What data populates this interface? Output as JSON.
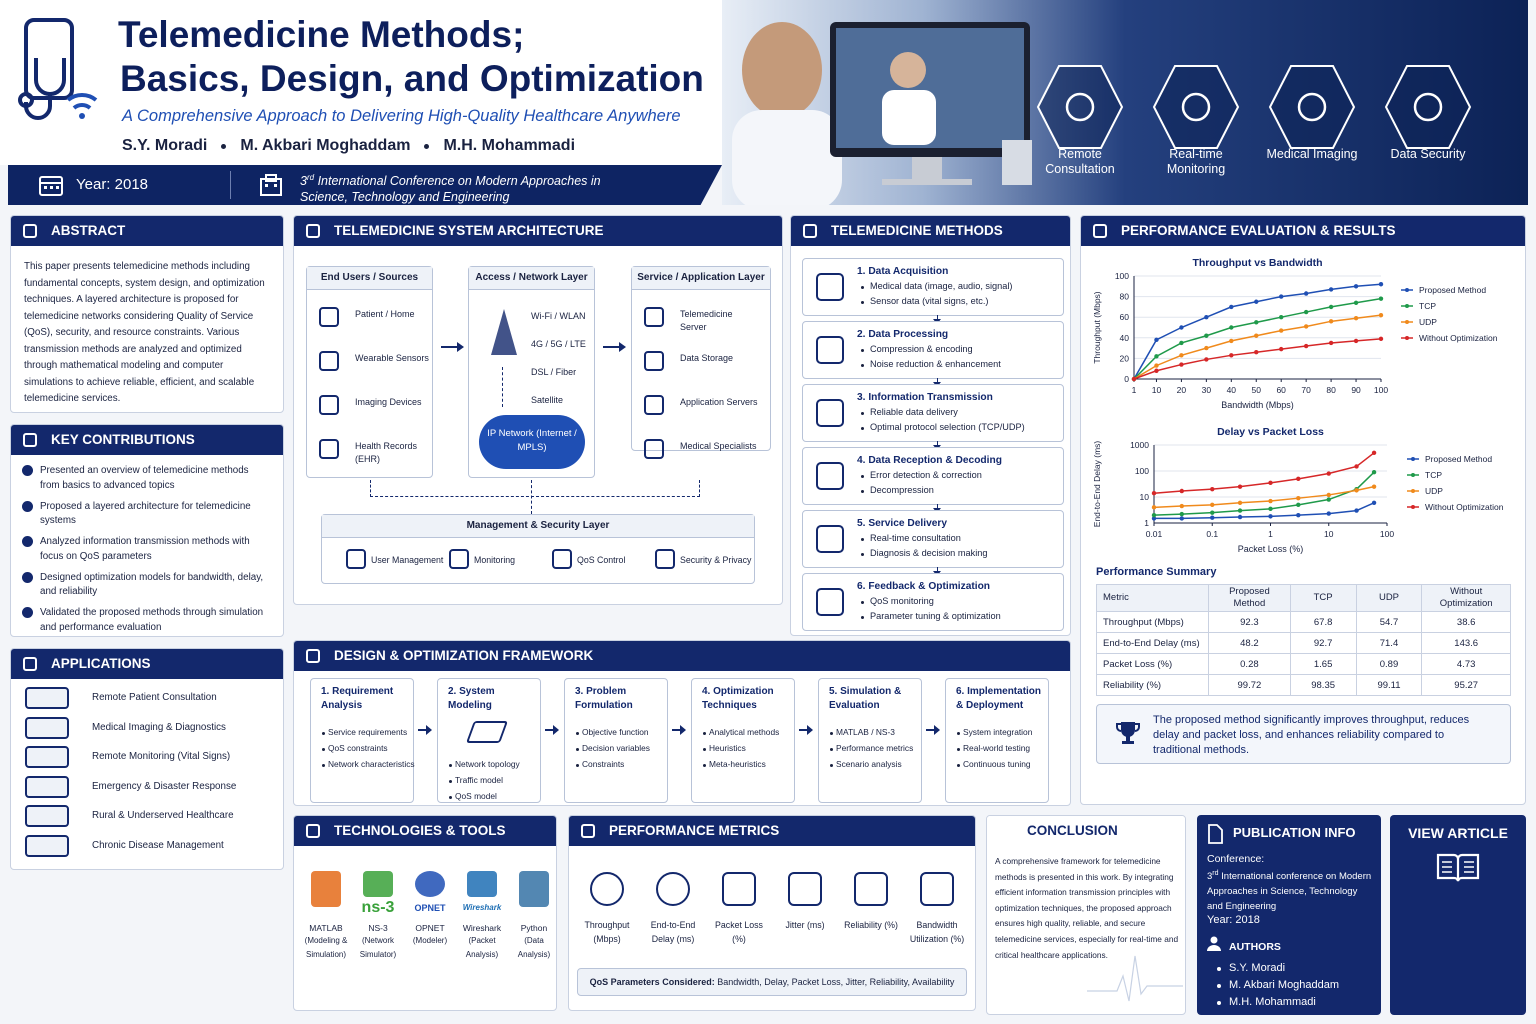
{
  "header": {
    "title_line1": "Telemedicine Methods;",
    "title_line2": "Basics, Design, and Optimization",
    "subtitle": "A Comprehensive Approach to Delivering High-Quality Healthcare Anywhere",
    "authors": [
      "S.Y. Moradi",
      "M. Akbari Moghaddam",
      "M.H. Mohammadi"
    ],
    "year": "Year: 2018",
    "conference_ordinal": "3",
    "conference_sup": "rd",
    "conference_line1": "International Conference on Modern Approaches in",
    "conference_line2": "Science, Technology and Engineering",
    "features": [
      "Remote Consultation",
      "Real-time Monitoring",
      "Medical Imaging",
      "Data Security"
    ]
  },
  "abstract": {
    "title": "ABSTRACT",
    "text": "This paper presents telemedicine methods including fundamental concepts, system design, and optimization techniques. A layered architecture is proposed for telemedicine networks considering Quality of Service (QoS), security, and resource constraints. Various transmission methods are analyzed and optimized through mathematical modeling and computer simulations to achieve reliable, efficient, and scalable telemedicine services."
  },
  "key_contributions": {
    "title": "KEY CONTRIBUTIONS",
    "items": [
      "Presented an overview of telemedicine methods from basics to advanced topics",
      "Proposed a layered architecture for telemedicine systems",
      "Analyzed information transmission methods with focus on QoS parameters",
      "Designed optimization models for bandwidth, delay, and reliability",
      "Validated the proposed methods through simulation and performance evaluation"
    ]
  },
  "applications": {
    "title": "APPLICATIONS",
    "items": [
      "Remote Patient Consultation",
      "Medical Imaging & Diagnostics",
      "Remote Monitoring (Vital Signs)",
      "Emergency & Disaster Response",
      "Rural & Underserved Healthcare",
      "Chronic Disease Management"
    ]
  },
  "architecture": {
    "title": "TELEMEDICINE SYSTEM ARCHITECTURE",
    "layers": [
      {
        "title": "End Users / Sources",
        "items": [
          "Patient / Home",
          "Wearable Sensors",
          "Imaging Devices",
          "Health Records (EHR)"
        ]
      },
      {
        "title": "Access / Network Layer",
        "items": [
          "Wi-Fi / WLAN",
          "4G / 5G / LTE",
          "DSL / Fiber",
          "Satellite"
        ],
        "cloud": "IP Network (Internet / MPLS)"
      },
      {
        "title": "Service / Application Layer",
        "items": [
          "Telemedicine Server",
          "Data Storage",
          "Application Servers",
          "Medical Specialists"
        ]
      }
    ],
    "management": {
      "title": "Management & Security Layer",
      "items": [
        "User Management",
        "Monitoring",
        "QoS Control",
        "Security & Privacy"
      ]
    }
  },
  "methods": {
    "title": "TELEMEDICINE METHODS",
    "steps": [
      {
        "title": "1. Data Acquisition",
        "items": [
          "Medical data (image, audio, signal)",
          "Sensor data (vital signs, etc.)"
        ]
      },
      {
        "title": "2. Data Processing",
        "items": [
          "Compression & encoding",
          "Noise reduction & enhancement"
        ]
      },
      {
        "title": "3. Information Transmission",
        "items": [
          "Reliable data delivery",
          "Optimal protocol selection (TCP/UDP)"
        ]
      },
      {
        "title": "4. Data Reception & Decoding",
        "items": [
          "Error detection & correction",
          "Decompression"
        ]
      },
      {
        "title": "5. Service Delivery",
        "items": [
          "Real-time consultation",
          "Diagnosis & decision making"
        ]
      },
      {
        "title": "6. Feedback & Optimization",
        "items": [
          "QoS monitoring",
          "Parameter tuning & optimization"
        ]
      }
    ]
  },
  "framework": {
    "title": "DESIGN & OPTIMIZATION FRAMEWORK",
    "steps": [
      {
        "title": "1. Requirement Analysis",
        "items": [
          "Service requirements",
          "QoS constraints",
          "Network characteristics"
        ]
      },
      {
        "title": "2. System Modeling",
        "items": [
          "Network topology",
          "Traffic model",
          "QoS model"
        ]
      },
      {
        "title": "3. Problem Formulation",
        "items": [
          "Objective function",
          "Decision variables",
          "Constraints"
        ]
      },
      {
        "title": "4. Optimization Techniques",
        "items": [
          "Analytical methods",
          "Heuristics",
          "Meta-heuristics"
        ]
      },
      {
        "title": "5. Simulation & Evaluation",
        "items": [
          "MATLAB / NS-3",
          "Performance metrics",
          "Scenario analysis"
        ]
      },
      {
        "title": "6. Implementation & Deployment",
        "items": [
          "System integration",
          "Real-world testing",
          "Continuous tuning"
        ]
      }
    ]
  },
  "results": {
    "title": "PERFORMANCE EVALUATION & RESULTS",
    "throughput_chart": {
      "type": "line",
      "title": "Throughput vs Bandwidth",
      "x_label": "Bandwidth (Mbps)",
      "y_label": "Throughput (Mbps)",
      "x": [
        1,
        10,
        20,
        30,
        40,
        50,
        60,
        70,
        80,
        90,
        100
      ],
      "xlim": [
        1,
        100
      ],
      "xticks": [
        1,
        10,
        20,
        30,
        40,
        50,
        60,
        70,
        80,
        90,
        100
      ],
      "ylim": [
        0,
        100
      ],
      "yticks": [
        0,
        20,
        40,
        60,
        80,
        100
      ],
      "legend": "right",
      "series": [
        {
          "name": "Proposed Method",
          "color": "#1f4fb4",
          "values": [
            0,
            38,
            50,
            60,
            70,
            75,
            80,
            83,
            87,
            90,
            92
          ]
        },
        {
          "name": "TCP",
          "color": "#1f9a4a",
          "values": [
            0,
            22,
            35,
            42,
            50,
            55,
            60,
            65,
            70,
            74,
            78
          ]
        },
        {
          "name": "UDP",
          "color": "#f08a1c",
          "values": [
            0,
            13,
            23,
            30,
            37,
            42,
            47,
            51,
            56,
            59,
            62
          ]
        },
        {
          "name": "Without Optimization",
          "color": "#d62728",
          "values": [
            0,
            8,
            14,
            19,
            23,
            26,
            29,
            32,
            35,
            37,
            39
          ]
        }
      ]
    },
    "delay_chart": {
      "type": "line",
      "title": "Delay vs Packet Loss",
      "x_label": "Packet Loss (%)",
      "y_label": "End-to-End Delay (ms)",
      "log_x": true,
      "log_y": true,
      "x": [
        0.01,
        0.03,
        0.1,
        0.3,
        1,
        3,
        10,
        30,
        60
      ],
      "xlim": [
        0.01,
        100
      ],
      "xticks": [
        0.01,
        0.1,
        1,
        10,
        100
      ],
      "ylim": [
        1,
        1000
      ],
      "yticks": [
        1,
        10,
        100,
        1000
      ],
      "legend": "right",
      "series": [
        {
          "name": "Proposed Method",
          "color": "#1f4fb4",
          "values": [
            1.5,
            1.5,
            1.6,
            1.7,
            1.8,
            2,
            2.3,
            3,
            6
          ]
        },
        {
          "name": "TCP",
          "color": "#1f9a4a",
          "values": [
            2,
            2.2,
            2.5,
            3,
            3.5,
            5,
            8,
            20,
            90
          ]
        },
        {
          "name": "UDP",
          "color": "#f08a1c",
          "values": [
            4,
            4.5,
            5,
            6,
            7,
            9,
            12,
            18,
            25
          ]
        },
        {
          "name": "Without Optimization",
          "color": "#d62728",
          "values": [
            14,
            17,
            20,
            25,
            35,
            50,
            80,
            150,
            500
          ]
        }
      ]
    },
    "summary": {
      "title": "Performance Summary",
      "columns": [
        "Metric",
        "Proposed Method",
        "TCP",
        "UDP",
        "Without Optimization"
      ],
      "rows": [
        [
          "Throughput (Mbps)",
          92.3,
          67.8,
          54.7,
          38.6
        ],
        [
          "End-to-End Delay (ms)",
          48.2,
          92.7,
          71.4,
          143.6
        ],
        [
          "Packet Loss (%)",
          0.28,
          1.65,
          0.89,
          4.73
        ],
        [
          "Reliability (%)",
          99.72,
          98.35,
          99.11,
          95.27
        ]
      ]
    },
    "note": "The proposed method significantly improves throughput, reduces delay and packet loss, and enhances reliability compared to traditional methods."
  },
  "technologies": {
    "title": "TECHNOLOGIES & TOOLS",
    "items": [
      {
        "name": "MATLAB",
        "desc": "(Modeling & Simulation)"
      },
      {
        "logo": "ns-3",
        "name": "NS-3",
        "desc": "(Network Simulator)"
      },
      {
        "logo": "OPNET",
        "name": "OPNET",
        "desc": "(Modeler)"
      },
      {
        "logo": "Wireshark",
        "name": "Wireshark",
        "desc": "(Packet Analysis)"
      },
      {
        "name": "Python",
        "desc": "(Data Analysis)"
      }
    ]
  },
  "metrics": {
    "title": "PERFORMANCE METRICS",
    "items": [
      "Throughput (Mbps)",
      "End-to-End Delay (ms)",
      "Packet Loss (%)",
      "Jitter (ms)",
      "Reliability (%)",
      "Bandwidth Utilization (%)"
    ],
    "qos_label": "QoS Parameters Considered:",
    "qos": "Bandwidth, Delay, Packet Loss, Jitter, Reliability, Availability"
  },
  "conclusion": {
    "title": "CONCLUSION",
    "text": "A comprehensive framework for telemedicine methods is presented in this work. By integrating efficient information transmission principles with optimization techniques, the proposed approach ensures high quality, reliable, and secure telemedicine services, especially for real-time and critical healthcare applications."
  },
  "publication": {
    "title": "PUBLICATION INFO",
    "conference_label": "Conference:",
    "conference_ordinal": "3",
    "conference_sup": "rd",
    "conference": "International conference on Modern Approaches in Science, Technology and Engineering",
    "year": "Year: 2018",
    "authors_title": "AUTHORS",
    "authors": [
      "S.Y. Moradi",
      "M. Akbari Moghaddam",
      "M.H. Mohammadi"
    ]
  },
  "view_article": "VIEW ARTICLE"
}
